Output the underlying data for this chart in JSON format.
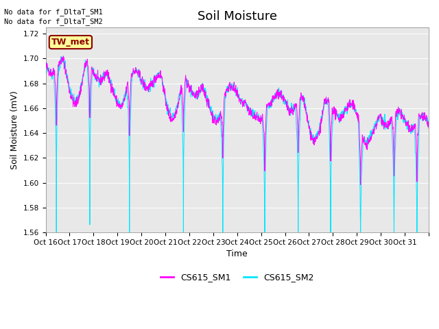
{
  "title": "Soil Moisture",
  "ylabel": "Soil Moisture (mV)",
  "xlabel": "Time",
  "ylim": [
    1.56,
    1.725
  ],
  "xlim": [
    0,
    16
  ],
  "xtick_positions": [
    0,
    1,
    2,
    3,
    4,
    5,
    6,
    7,
    8,
    9,
    10,
    11,
    12,
    13,
    14,
    15,
    16
  ],
  "xtick_labels": [
    "Oct 16",
    "Oct 17",
    "Oct 18",
    "Oct 19",
    "Oct 20",
    "Oct 21",
    "Oct 22",
    "Oct 23",
    "Oct 24",
    "Oct 25",
    "Oct 26",
    "Oct 27",
    "Oct 28",
    "Oct 29",
    "Oct 30",
    "Oct 31",
    ""
  ],
  "line1_color": "#FF00FF",
  "line2_color": "#00E5FF",
  "line1_label": "CS615_SM1",
  "line2_label": "CS615_SM2",
  "no_data_text1": "No data for f_DltaT_SM1",
  "no_data_text2": "No data for f_DltaT_SM2",
  "tw_met_label": "TW_met",
  "bg_color": "#E8E8E8",
  "title_fontsize": 13,
  "label_fontsize": 9,
  "tick_fontsize": 7.5
}
